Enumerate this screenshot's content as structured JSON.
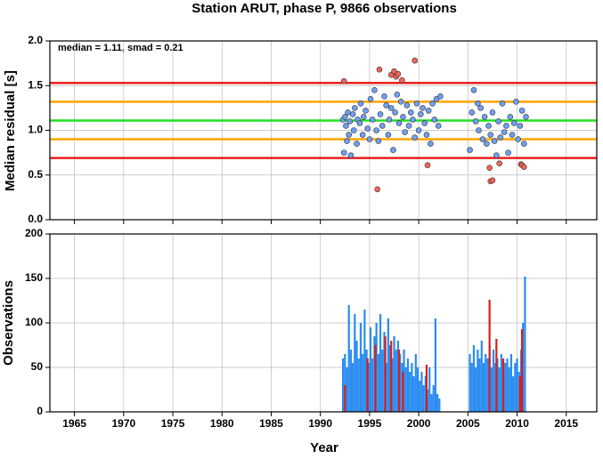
{
  "chart_data": [
    {
      "type": "scatter",
      "title": "Station ARUT, phase P, 9866 observations",
      "annotation": "median = 1.11, smad = 0.21",
      "ylabel": "Median residual [s]",
      "xlim": [
        1962.5,
        2018.1
      ],
      "xticks": [
        1965,
        1970,
        1975,
        1980,
        1985,
        1990,
        1995,
        2000,
        2005,
        2010,
        2015
      ],
      "ylim": [
        0,
        2
      ],
      "yticks": [
        {
          "value": 0,
          "label": "0.0"
        },
        {
          "value": 0.5,
          "label": "0.5"
        },
        {
          "value": 1,
          "label": "1.0"
        },
        {
          "value": 1.5,
          "label": "1.5"
        },
        {
          "value": 2,
          "label": "2.0"
        }
      ],
      "grid": true,
      "hlines": [
        {
          "value": 1.53,
          "color": "#e8201f"
        },
        {
          "value": 1.32,
          "color": "#ffa500"
        },
        {
          "value": 1.11,
          "color": "#22e022"
        },
        {
          "value": 0.9,
          "color": "#ffa500"
        },
        {
          "value": 0.69,
          "color": "#e8201f"
        }
      ],
      "series": [
        {
          "color": "#6f9ff2",
          "x": [
            1992.3,
            1992.4,
            1992.5,
            1992.6,
            1992.7,
            1992.8,
            1992.9,
            1993.0,
            1993.1,
            1993.3,
            1993.4,
            1993.5,
            1993.7,
            1993.8,
            1994.0,
            1994.1,
            1994.3,
            1994.4,
            1994.6,
            1994.8,
            1995.0,
            1995.1,
            1995.3,
            1995.5,
            1995.7,
            1995.9,
            1996.1,
            1996.3,
            1996.5,
            1996.7,
            1996.9,
            1997.0,
            1997.2,
            1997.4,
            1997.6,
            1997.8,
            1998.0,
            1998.2,
            1998.4,
            1998.6,
            1998.8,
            1999.0,
            1999.2,
            1999.4,
            1999.6,
            1999.8,
            2000.0,
            2000.2,
            2000.4,
            2000.6,
            2000.8,
            2001.0,
            2001.2,
            2001.4,
            2001.6,
            2001.8,
            2002.0,
            2002.2,
            2005.2,
            2005.4,
            2005.6,
            2005.8,
            2006.0,
            2006.1,
            2006.3,
            2006.5,
            2006.7,
            2006.9,
            2007.1,
            2007.3,
            2007.5,
            2007.7,
            2007.9,
            2008.1,
            2008.3,
            2008.5,
            2008.7,
            2008.9,
            2009.1,
            2009.3,
            2009.5,
            2009.7,
            2009.9,
            2010.1,
            2010.3,
            2010.5,
            2010.7,
            2010.9
          ],
          "values": [
            1.12,
            0.75,
            1.15,
            1.05,
            0.88,
            1.2,
            0.95,
            1.1,
            0.72,
            1.18,
            1.0,
            1.25,
            0.85,
            1.12,
            1.08,
            1.3,
            0.95,
            1.15,
            1.22,
            1.02,
            0.9,
            1.35,
            1.12,
            1.45,
            1.0,
            0.88,
            1.18,
            1.05,
            1.38,
            1.28,
            0.95,
            1.12,
            1.25,
            0.78,
            1.2,
            1.4,
            1.08,
            1.32,
            1.15,
            0.98,
            1.28,
            1.05,
            1.2,
            1.12,
            0.92,
            1.3,
            1.0,
            1.18,
            1.25,
            1.08,
            0.95,
            1.22,
            0.85,
            1.3,
            1.12,
            1.35,
            1.05,
            1.38,
            0.78,
            1.2,
            1.45,
            1.1,
            1.3,
            1.0,
            1.25,
            0.9,
            1.15,
            0.85,
            1.05,
            0.95,
            1.2,
            0.88,
            0.72,
            1.1,
            0.92,
            1.3,
            0.98,
            1.05,
            0.75,
            1.15,
            0.95,
            1.08,
            1.32,
            0.9,
            1.05,
            1.22,
            0.85,
            1.15
          ]
        },
        {
          "color": "#f0645a",
          "x": [
            1992.4,
            1995.8,
            1996.0,
            1997.2,
            1997.5,
            1997.7,
            1997.9,
            1998.3,
            1999.6,
            2000.9,
            2007.2,
            2007.3,
            2007.5,
            2008.2,
            2010.4,
            2010.5,
            2010.7
          ],
          "values": [
            1.55,
            0.34,
            1.68,
            1.62,
            1.66,
            1.6,
            1.63,
            1.56,
            1.78,
            0.61,
            0.58,
            0.43,
            0.44,
            0.63,
            0.62,
            0.61,
            0.59
          ]
        }
      ]
    },
    {
      "type": "bar",
      "ylabel": "Observations",
      "xlabel": "Year",
      "xlim": [
        1962.5,
        2018.1
      ],
      "xticks": [
        1965,
        1970,
        1975,
        1980,
        1985,
        1990,
        1995,
        2000,
        2005,
        2010,
        2015
      ],
      "ylim": [
        0,
        200
      ],
      "yticks": [
        0,
        50,
        100,
        150,
        200
      ],
      "grid": true,
      "series": [
        {
          "color": "#2a8cf0",
          "x": [
            1992.3,
            1992.5,
            1992.7,
            1992.9,
            1993.1,
            1993.3,
            1993.5,
            1993.7,
            1993.9,
            1994.1,
            1994.3,
            1994.5,
            1994.7,
            1994.9,
            1995.1,
            1995.3,
            1995.5,
            1995.7,
            1995.9,
            1996.1,
            1996.3,
            1996.5,
            1996.7,
            1996.9,
            1997.1,
            1997.3,
            1997.5,
            1997.7,
            1997.9,
            1998.1,
            1998.3,
            1998.5,
            1998.7,
            1998.9,
            1999.1,
            1999.3,
            1999.5,
            1999.7,
            1999.9,
            2000.1,
            2000.3,
            2000.5,
            2000.7,
            2000.9,
            2001.1,
            2001.3,
            2001.5,
            2001.7,
            2001.9,
            2002.1,
            2005.2,
            2005.4,
            2005.6,
            2005.8,
            2006.0,
            2006.2,
            2006.4,
            2006.6,
            2006.8,
            2007.0,
            2007.2,
            2007.4,
            2007.6,
            2007.8,
            2008.0,
            2008.2,
            2008.4,
            2008.6,
            2008.8,
            2009.0,
            2009.2,
            2009.4,
            2009.6,
            2009.8,
            2010.0,
            2010.2,
            2010.4,
            2010.6,
            2010.8
          ],
          "values": [
            60,
            65,
            50,
            120,
            70,
            55,
            110,
            80,
            60,
            100,
            65,
            115,
            70,
            55,
            95,
            60,
            85,
            100,
            65,
            110,
            70,
            90,
            55,
            105,
            75,
            60,
            85,
            70,
            80,
            65,
            55,
            70,
            50,
            60,
            45,
            55,
            40,
            65,
            50,
            35,
            45,
            30,
            40,
            25,
            50,
            20,
            30,
            105,
            20,
            15,
            65,
            55,
            75,
            50,
            70,
            60,
            80,
            55,
            65,
            60,
            75,
            50,
            70,
            55,
            60,
            50,
            65,
            45,
            55,
            60,
            50,
            65,
            40,
            55,
            60,
            45,
            70,
            100,
            152
          ]
        },
        {
          "color": "#d81e1e",
          "x": [
            1992.5,
            1994.8,
            1995.6,
            1996.6,
            1997.2,
            1998.0,
            1998.4,
            2000.8,
            2007.2,
            2007.9,
            2008.6,
            2010.3,
            2010.5
          ],
          "values": [
            30,
            60,
            75,
            85,
            80,
            70,
            45,
            53,
            126,
            82,
            60,
            40,
            93
          ]
        }
      ]
    }
  ]
}
